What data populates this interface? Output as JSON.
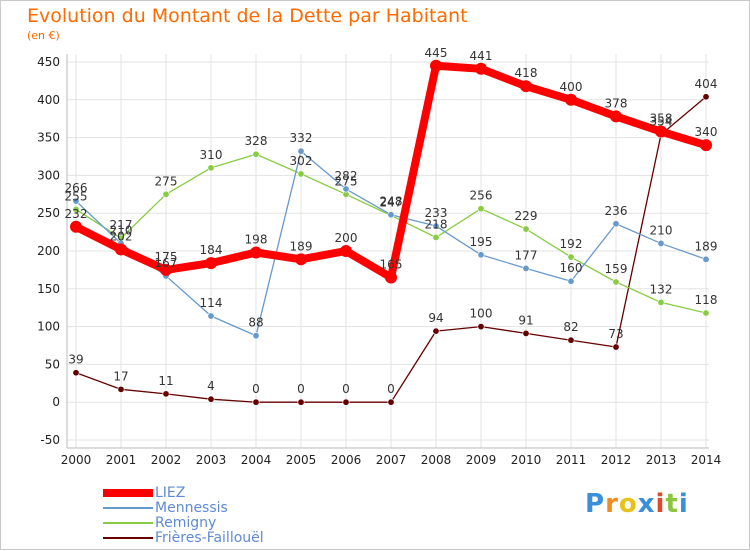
{
  "header": {
    "title": "Evolution du Montant de la Dette par Habitant",
    "unit": "(en €)"
  },
  "logo_text": "Proxiti",
  "colors": {
    "title": "#ff6a00",
    "grid": "#e3e3e3",
    "axis_text": "#222222",
    "legend_text": "#5e8ad6",
    "LIEZ": "#ff0000",
    "Mennessis": "#6699cc",
    "Remigny": "#88cc44",
    "Frieres": "#660000"
  },
  "chart_data": {
    "type": "line",
    "x": [
      "2000",
      "2001",
      "2002",
      "2003",
      "2004",
      "2005",
      "2006",
      "2007",
      "2008",
      "2009",
      "2010",
      "2011",
      "2012",
      "2013",
      "2014"
    ],
    "yticks": [
      "-50",
      "0",
      "50",
      "100",
      "150",
      "200",
      "250",
      "300",
      "350",
      "400",
      "450"
    ],
    "ylim": [
      -50,
      450
    ],
    "grid": true,
    "legend_position": "bottom-left",
    "series": [
      {
        "name": "LIEZ",
        "values": [
          232,
          202,
          175,
          184,
          198,
          189,
          200,
          165,
          445,
          441,
          418,
          400,
          378,
          358,
          340
        ]
      },
      {
        "name": "Mennessis",
        "values": [
          266,
          210,
          167,
          114,
          88,
          332,
          282,
          248,
          233,
          195,
          177,
          160,
          236,
          210,
          189
        ]
      },
      {
        "name": "Remigny",
        "values": [
          255,
          217,
          275,
          310,
          328,
          302,
          275,
          247,
          218,
          256,
          229,
          192,
          159,
          132,
          118
        ]
      },
      {
        "name": "Frières-Faillouël",
        "values": [
          39,
          17,
          11,
          4,
          0,
          0,
          0,
          0,
          94,
          100,
          91,
          82,
          73,
          354,
          404
        ]
      }
    ]
  }
}
